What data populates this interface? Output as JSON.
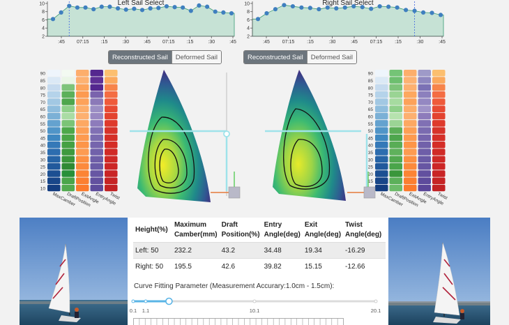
{
  "charts": {
    "left": {
      "title": "Left Sail Select",
      "x_ticks": [
        ":45",
        "07:15",
        ":15",
        ":30",
        ":45",
        "07:15",
        ":15",
        ":30",
        ":45"
      ],
      "y_ticks": [
        "2",
        "4",
        "6",
        "8",
        "10"
      ],
      "points_y": [
        6.2,
        7.8,
        9.4,
        9.0,
        9.0,
        8.6,
        9.2,
        9.2,
        8.8,
        8.5,
        8.7,
        8.4,
        8.8,
        8.9,
        9.3,
        9.1,
        9.0,
        8.2,
        9.5,
        9.2,
        8.0,
        7.8,
        7.6
      ]
    },
    "right": {
      "title": "Right Sail Select",
      "x_ticks": [
        ":45",
        "07:15",
        ":15",
        ":30",
        ":45",
        "07:15",
        ":15",
        ":30",
        ":45"
      ],
      "y_ticks": [
        "2",
        "4",
        "6",
        "8",
        "10"
      ],
      "points_y": [
        6.2,
        7.6,
        8.6,
        9.6,
        9.3,
        9.0,
        8.9,
        8.6,
        9.0,
        8.8,
        9.0,
        9.3,
        9.1,
        8.7,
        9.3,
        9.2,
        9.0,
        8.4,
        8.2,
        7.8,
        7.7,
        7.2
      ]
    }
  },
  "toggles": {
    "left": {
      "reconstructed": "Reconstructed Sail",
      "deformed": "Deformed Sail"
    },
    "right": {
      "reconstructed": "Reconstructed Sail",
      "deformed": "Deformed Sail"
    }
  },
  "heatmap": {
    "row_labels": [
      "90",
      "85",
      "80",
      "75",
      "70",
      "65",
      "60",
      "55",
      "50",
      "45",
      "40",
      "35",
      "30",
      "25",
      "20",
      "15",
      "10"
    ],
    "column_labels": [
      "MaxCamber",
      "DraftPosition",
      "ExitAngle",
      "EntryAngle",
      "Twist"
    ]
  },
  "table": {
    "headers": [
      "Height(%)",
      "Maximum Camber(mm)",
      "Draft Position(%)",
      "Entry Angle(deg)",
      "Exit Angle(deg)",
      "Twist Angle(deg)"
    ],
    "rows": [
      [
        "Left: 50",
        "232.2",
        "43.2",
        "34.48",
        "19.34",
        "-16.29"
      ],
      [
        "Right: 50",
        "195.5",
        "42.6",
        "39.82",
        "15.15",
        "-12.66"
      ]
    ]
  },
  "curve_fit": {
    "label": "Curve Fitting Parameter (Measurement Accurary:1.0cm - 1.5cm):",
    "slider_value": 1.1,
    "slider_min": 0.1,
    "slider_max": 20.1,
    "tick_labels": [
      "0.1",
      "1.1",
      "10.1",
      "20.1"
    ]
  },
  "colors": {
    "chart_fill": "#c6e2d5",
    "chart_line": "#3a9a73",
    "point": "#3f7fbf",
    "cursor": "#4a6fe0",
    "guide": "#9fe3ea",
    "slider": "#5ab4e6"
  }
}
